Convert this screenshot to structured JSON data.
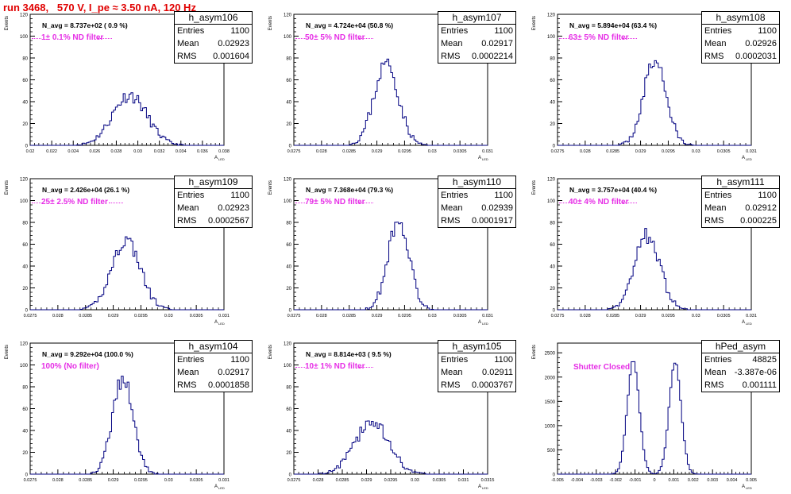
{
  "title": "run 3468,   570 V, I_pe ≈ 3.50 nA, 120 Hz",
  "colors": {
    "title": "#e00000",
    "filter_text": "#e62ee6",
    "histogram": "#000080",
    "axis": "#000000"
  },
  "stats_labels": {
    "entries": "Entries",
    "mean": "Mean",
    "rms": "RMS"
  },
  "y_axis_label": "Events",
  "x_axis_label": "A",
  "x_axis_sub": "LED",
  "chart_data": [
    {
      "type": "histogram",
      "name": "h_asym106",
      "entries": "1100",
      "mean": "0.02923",
      "rms": "0.001604",
      "navg": "N_avg = 8.737e+02 ( 0.9 %)",
      "filter": "1± 0.1% ND filter",
      "xlim": [
        0.02,
        0.038
      ],
      "ylim": [
        0,
        120
      ],
      "xticks": [
        "0.02",
        "0.022",
        "0.024",
        "0.026",
        "0.028",
        "0.03",
        "0.032",
        "0.034",
        "0.036",
        "0.038"
      ],
      "yticks": [
        "0",
        "20",
        "40",
        "60",
        "80",
        "100",
        "120"
      ],
      "peaks": [
        {
          "mu": 0.02923,
          "sigma": 0.0016,
          "amp": 46
        }
      ],
      "seed": 11
    },
    {
      "type": "histogram",
      "name": "h_asym107",
      "entries": "1100",
      "mean": "0.02917",
      "rms": "0.0002214",
      "navg": "N_avg = 4.724e+04 (50.8 %)",
      "filter": "50± 5% ND filter",
      "xlim": [
        0.0275,
        0.031
      ],
      "ylim": [
        0,
        120
      ],
      "xticks": [
        "0.0275",
        "0.028",
        "0.0285",
        "0.029",
        "0.0295",
        "0.03",
        "0.0305",
        "0.031"
      ],
      "yticks": [
        "0",
        "20",
        "40",
        "60",
        "80",
        "100",
        "120"
      ],
      "peaks": [
        {
          "mu": 0.02917,
          "sigma": 0.000221,
          "amp": 75
        }
      ],
      "seed": 23
    },
    {
      "type": "histogram",
      "name": "h_asym108",
      "entries": "1100",
      "mean": "0.02926",
      "rms": "0.0002031",
      "navg": "N_avg = 5.894e+04 (63.4 %)",
      "filter": "63± 5% ND filter",
      "xlim": [
        0.0275,
        0.031
      ],
      "ylim": [
        0,
        120
      ],
      "xticks": [
        "0.0275",
        "0.028",
        "0.0285",
        "0.029",
        "0.0295",
        "0.03",
        "0.0305",
        "0.031"
      ],
      "yticks": [
        "0",
        "20",
        "40",
        "60",
        "80",
        "100",
        "120"
      ],
      "peaks": [
        {
          "mu": 0.02926,
          "sigma": 0.000203,
          "amp": 78
        }
      ],
      "seed": 37
    },
    {
      "type": "histogram",
      "name": "h_asym109",
      "entries": "1100",
      "mean": "0.02923",
      "rms": "0.0002567",
      "navg": "N_avg = 2.426e+04 (26.1 %)",
      "filter": "25± 2.5% ND filter",
      "xlim": [
        0.0275,
        0.031
      ],
      "ylim": [
        0,
        120
      ],
      "xticks": [
        "0.0275",
        "0.028",
        "0.0285",
        "0.029",
        "0.0295",
        "0.03",
        "0.0305",
        "0.031"
      ],
      "yticks": [
        "0",
        "20",
        "40",
        "60",
        "80",
        "100",
        "120"
      ],
      "peaks": [
        {
          "mu": 0.02923,
          "sigma": 0.000257,
          "amp": 64
        }
      ],
      "seed": 41
    },
    {
      "type": "histogram",
      "name": "h_asym110",
      "entries": "1100",
      "mean": "0.02939",
      "rms": "0.0001917",
      "navg": "N_avg = 7.368e+04 (79.3 %)",
      "filter": "79± 5% ND filter",
      "xlim": [
        0.0275,
        0.031
      ],
      "ylim": [
        0,
        120
      ],
      "xticks": [
        "0.0275",
        "0.028",
        "0.0285",
        "0.029",
        "0.0295",
        "0.03",
        "0.0305",
        "0.031"
      ],
      "yticks": [
        "0",
        "20",
        "40",
        "60",
        "80",
        "100",
        "120"
      ],
      "peaks": [
        {
          "mu": 0.02939,
          "sigma": 0.000192,
          "amp": 82
        }
      ],
      "seed": 53
    },
    {
      "type": "histogram",
      "name": "h_asym111",
      "entries": "1100",
      "mean": "0.02912",
      "rms": "0.000225",
      "navg": "N_avg = 3.757e+04 (40.4 %)",
      "filter": "40± 4% ND filter",
      "xlim": [
        0.0275,
        0.031
      ],
      "ylim": [
        0,
        120
      ],
      "xticks": [
        "0.0275",
        "0.028",
        "0.0285",
        "0.029",
        "0.0295",
        "0.03",
        "0.0305",
        "0.031"
      ],
      "yticks": [
        "0",
        "20",
        "40",
        "60",
        "80",
        "100",
        "120"
      ],
      "peaks": [
        {
          "mu": 0.02912,
          "sigma": 0.000225,
          "amp": 68
        }
      ],
      "seed": 67
    },
    {
      "type": "histogram",
      "name": "h_asym104",
      "entries": "1100",
      "mean": "0.02917",
      "rms": "0.0001858",
      "navg": "N_avg = 9.292e+04 (100.0 %)",
      "filter": "100% (No filter)",
      "xlim": [
        0.0275,
        0.031
      ],
      "ylim": [
        0,
        120
      ],
      "xticks": [
        "0.0275",
        "0.028",
        "0.0285",
        "0.029",
        "0.0295",
        "0.03",
        "0.0305",
        "0.031"
      ],
      "yticks": [
        "0",
        "20",
        "40",
        "60",
        "80",
        "100",
        "120"
      ],
      "peaks": [
        {
          "mu": 0.02917,
          "sigma": 0.000186,
          "amp": 88
        }
      ],
      "seed": 79
    },
    {
      "type": "histogram",
      "name": "h_asym105",
      "entries": "1100",
      "mean": "0.02911",
      "rms": "0.0003767",
      "navg": "N_avg = 8.814e+03 ( 9.5 %)",
      "filter": "10± 1% ND filter",
      "xlim": [
        0.0275,
        0.0315
      ],
      "ylim": [
        0,
        120
      ],
      "xticks": [
        "0.0275",
        "0.028",
        "0.0285",
        "0.029",
        "0.0295",
        "0.03",
        "0.0305",
        "0.031",
        "0.0315"
      ],
      "yticks": [
        "0",
        "20",
        "40",
        "60",
        "80",
        "100",
        "120"
      ],
      "peaks": [
        {
          "mu": 0.02911,
          "sigma": 0.00035,
          "amp": 48
        }
      ],
      "seed": 83
    },
    {
      "type": "histogram",
      "name": "hPed_asym",
      "entries": "48825",
      "mean": "-3.387e-06",
      "rms": "0.001111",
      "navg": "",
      "filter": "Shutter Closed",
      "xlim": [
        -0.005,
        0.005
      ],
      "ylim": [
        0,
        2700
      ],
      "xticks": [
        "-0.005",
        "-0.004",
        "-0.003",
        "-0.002",
        "-0.001",
        "0",
        "0.001",
        "0.002",
        "0.003",
        "0.004",
        "0.005"
      ],
      "yticks": [
        "0",
        "500",
        "1000",
        "1500",
        "2000",
        "2500"
      ],
      "peaks": [
        {
          "mu": -0.00109,
          "sigma": 0.00031,
          "amp": 2350
        },
        {
          "mu": 0.00107,
          "sigma": 0.00031,
          "amp": 2300
        }
      ],
      "seed": 97
    }
  ]
}
